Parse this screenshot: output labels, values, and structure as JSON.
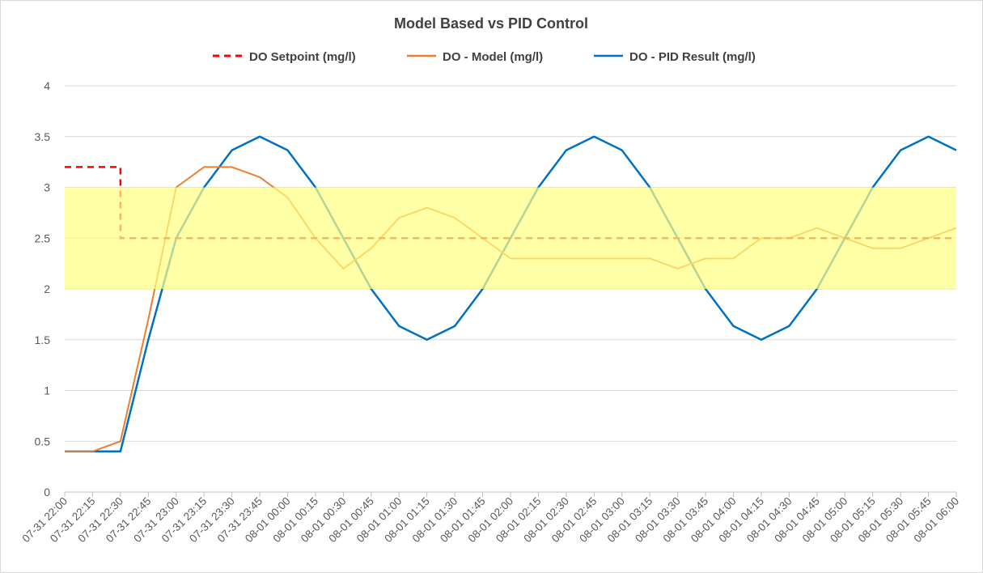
{
  "chart_data": {
    "type": "line",
    "title": "Model Based vs PID Control",
    "xlabel": "",
    "ylabel": "",
    "ylim": [
      0,
      4
    ],
    "yticks": [
      "0",
      "0.5",
      "1",
      "1.5",
      "2",
      "2.5",
      "3",
      "3.5",
      "4"
    ],
    "grid": true,
    "legend": "top",
    "band": {
      "from": 2,
      "to": 3,
      "color": "#ffff80"
    },
    "categories": [
      "07-31 22:00",
      "07-31 22:15",
      "07-31 22:30",
      "07-31 22:45",
      "07-31 23:00",
      "07-31 23:15",
      "07-31 23:30",
      "07-31 23:45",
      "08-01 00:00",
      "08-01 00:15",
      "08-01 00:30",
      "08-01 00:45",
      "08-01 01:00",
      "08-01 01:15",
      "08-01 01:30",
      "08-01 01:45",
      "08-01 02:00",
      "08-01 02:15",
      "08-01 02:30",
      "08-01 02:45",
      "08-01 03:00",
      "08-01 03:15",
      "08-01 03:30",
      "08-01 03:45",
      "08-01 04:00",
      "08-01 04:15",
      "08-01 04:30",
      "08-01 04:45",
      "08-01 05:00",
      "08-01 05:15",
      "08-01 05:30",
      "08-01 05:45",
      "08-01 06:00"
    ],
    "setpoint": {
      "name": "DO Setpoint (mg/l)",
      "color": "#ff0000",
      "points": [
        [
          0,
          3.2
        ],
        [
          2,
          3.2
        ],
        [
          2,
          2.5
        ],
        [
          32,
          2.5
        ]
      ]
    },
    "series": [
      {
        "name": "DO - Model (mg/l)",
        "color": "#ed7d31",
        "values": [
          0.4,
          0.4,
          0.5,
          1.7,
          3.0,
          3.2,
          3.2,
          3.1,
          2.9,
          2.5,
          2.2,
          2.4,
          2.7,
          2.8,
          2.7,
          2.5,
          2.3,
          2.3,
          2.3,
          2.3,
          2.3,
          2.3,
          2.2,
          2.3,
          2.3,
          2.5,
          2.5,
          2.6,
          2.5,
          2.4,
          2.4,
          2.5,
          2.6
        ]
      },
      {
        "name": "DO - PID Result (mg/l)",
        "color": "#0070c0",
        "values": [
          0.4,
          0.4,
          0.4,
          1.5,
          2.5,
          3.0,
          3.366,
          3.5,
          3.366,
          3.0,
          2.5,
          2.0,
          1.634,
          1.5,
          1.634,
          2.0,
          2.5,
          3.0,
          3.366,
          3.5,
          3.366,
          3.0,
          2.5,
          2.0,
          1.634,
          1.5,
          1.634,
          2.0,
          2.5,
          3.0,
          3.366,
          3.5,
          3.366
        ]
      }
    ]
  }
}
